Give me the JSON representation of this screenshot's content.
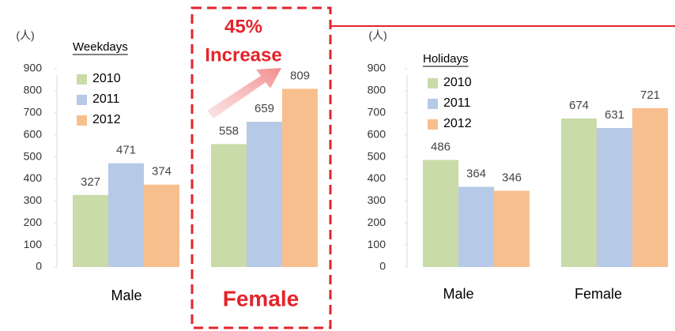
{
  "chart_data": [
    {
      "type": "bar",
      "subtitle": "Weekdays",
      "y_label": "(人)",
      "categories": [
        "Male",
        "Female"
      ],
      "series": [
        {
          "name": "2010",
          "color": "#c9dba8",
          "values": [
            327,
            558
          ]
        },
        {
          "name": "2011",
          "color": "#b6c9e6",
          "values": [
            471,
            659
          ]
        },
        {
          "name": "2012",
          "color": "#f8bf8e",
          "values": [
            374,
            809
          ]
        }
      ],
      "ylim": [
        0,
        900
      ],
      "yticks": [
        0,
        100,
        200,
        300,
        400,
        500,
        600,
        700,
        800,
        900
      ],
      "annotations": [
        "45%",
        "Increase"
      ],
      "grid": false
    },
    {
      "type": "bar",
      "subtitle": "Holidays",
      "y_label": "(人)",
      "categories": [
        "Male",
        "Female"
      ],
      "series": [
        {
          "name": "2010",
          "color": "#c9dba8",
          "values": [
            486,
            674
          ]
        },
        {
          "name": "2011",
          "color": "#b6c9e6",
          "values": [
            364,
            631
          ]
        },
        {
          "name": "2012",
          "color": "#f8bf8e",
          "values": [
            346,
            721
          ]
        }
      ],
      "ylim": [
        0,
        900
      ],
      "yticks": [
        0,
        100,
        200,
        300,
        400,
        500,
        600,
        700,
        800,
        900
      ],
      "grid": false
    }
  ]
}
